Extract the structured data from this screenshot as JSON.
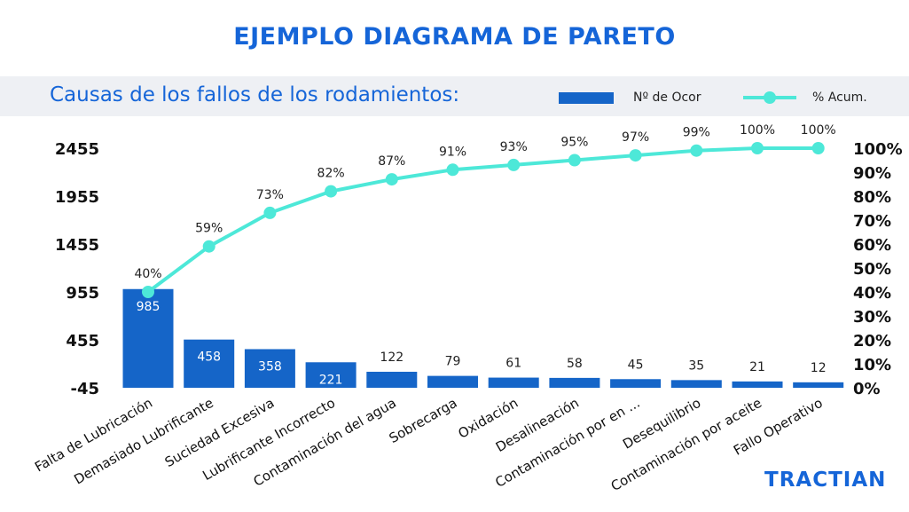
{
  "title": "EJEMPLO DIAGRAMA DE PARETO",
  "logo_text": "TRACTIAN",
  "colors": {
    "accent": "#1565d8",
    "bar": "#1565c8",
    "line": "#4de8d8",
    "band": "#eef0f4"
  },
  "chart_data": {
    "type": "bar",
    "title": "Causas de los fallos de los rodamientos:",
    "categories": [
      "Falta de Lubricación",
      "Demasiado Lubrificante",
      "Suciedad Excesiva",
      "Lubrificante Incorrecto",
      "Contaminación del agua",
      "Sobrecarga",
      "Oxidación",
      "Desalineación",
      "Contaminación por en ...",
      "Desequilibrio",
      "Contaminación por aceite",
      "Fallo Operativo"
    ],
    "series": [
      {
        "name": "Nº de Ocor",
        "type": "bar",
        "axis": "left",
        "values": [
          985,
          458,
          358,
          221,
          122,
          79,
          61,
          58,
          45,
          35,
          21,
          12
        ],
        "labels": [
          "985",
          "458",
          "358",
          "221",
          "122",
          "79",
          "61",
          "58",
          "45",
          "35",
          "21",
          "12"
        ]
      },
      {
        "name": "% Acum.",
        "type": "line",
        "axis": "right",
        "values": [
          40,
          59,
          73,
          82,
          87,
          91,
          93,
          95,
          97,
          99,
          100,
          100
        ],
        "labels": [
          "40%",
          "59%",
          "73%",
          "82%",
          "87%",
          "91%",
          "93%",
          "95%",
          "97%",
          "99%",
          "100%",
          "100%"
        ]
      }
    ],
    "y_left": {
      "ticks": [
        "-45",
        "455",
        "955",
        "1455",
        "1955",
        "2455"
      ],
      "lim": [
        -45,
        2455
      ]
    },
    "y_right": {
      "ticks": [
        "0%",
        "10%",
        "20%",
        "30%",
        "40%",
        "50%",
        "60%",
        "70%",
        "80%",
        "90%",
        "100%"
      ],
      "lim": [
        0,
        100
      ]
    },
    "grid": false,
    "legend": "top-right"
  }
}
